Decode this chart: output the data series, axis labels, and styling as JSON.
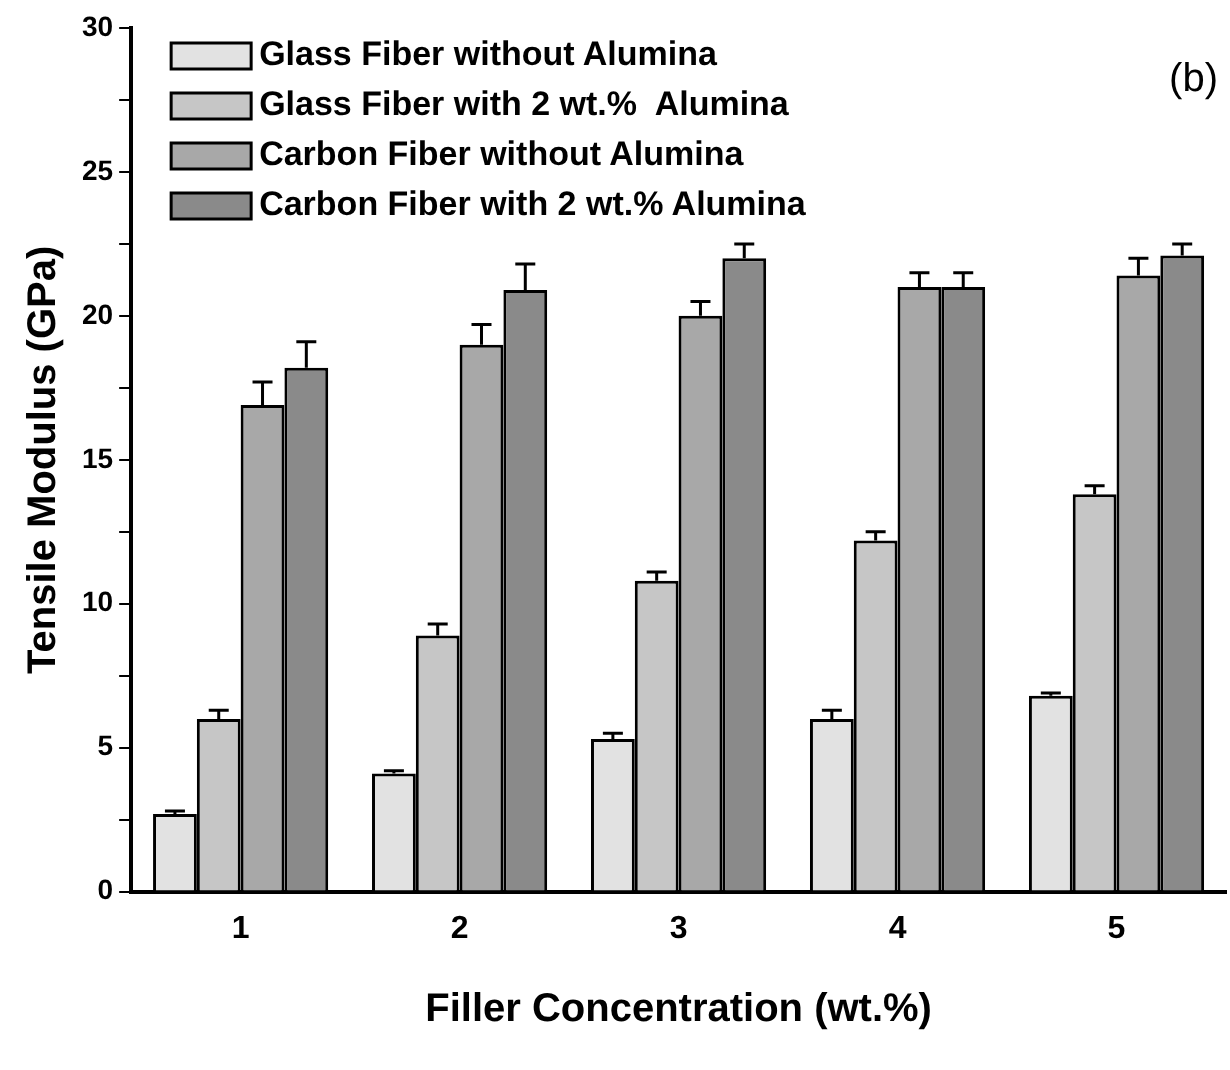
{
  "chart_data": {
    "type": "bar",
    "xlabel": "Filler Concentration (wt.%)",
    "ylabel": "Tensile Modulus (GPa)",
    "categories": [
      "1",
      "2",
      "3",
      "4",
      "5"
    ],
    "ylim": [
      0,
      30
    ],
    "yticks": [
      0,
      {
        "value": 2.5,
        "label": null
      },
      5,
      {
        "value": 7.5,
        "label": null
      },
      10,
      {
        "value": 12.5,
        "label": null
      },
      15,
      {
        "value": 17.5,
        "label": null
      },
      20,
      {
        "value": 22.5,
        "label": null
      },
      25,
      {
        "value": 27.5,
        "label": null
      },
      30
    ],
    "grid": false,
    "legend": "top left",
    "annotations": [
      "(b)"
    ],
    "series": [
      {
        "name": "Glass Fiber without Alumina",
        "color": "#e2e2e2",
        "values": [
          2.7,
          4.1,
          5.3,
          6.0,
          6.8
        ],
        "errors": [
          0.1,
          0.1,
          0.2,
          0.3,
          0.1
        ]
      },
      {
        "name": "Glass Fiber with 2 wt.%  Alumina",
        "color": "#c6c6c6",
        "values": [
          6.0,
          8.9,
          10.8,
          12.2,
          13.8
        ],
        "errors": [
          0.3,
          0.4,
          0.3,
          0.3,
          0.3
        ]
      },
      {
        "name": "Carbon Fiber without Alumina",
        "color": "#a8a8a8",
        "values": [
          16.9,
          19.0,
          20.0,
          21.0,
          21.4
        ],
        "errors": [
          0.8,
          0.7,
          0.5,
          0.5,
          0.6
        ]
      },
      {
        "name": "Carbon Fiber with 2 wt.% Alumina",
        "color": "#8a8a8a",
        "values": [
          18.2,
          20.9,
          22.0,
          21.0,
          22.1
        ],
        "errors": [
          0.9,
          0.9,
          0.5,
          0.5,
          0.4
        ]
      }
    ]
  }
}
